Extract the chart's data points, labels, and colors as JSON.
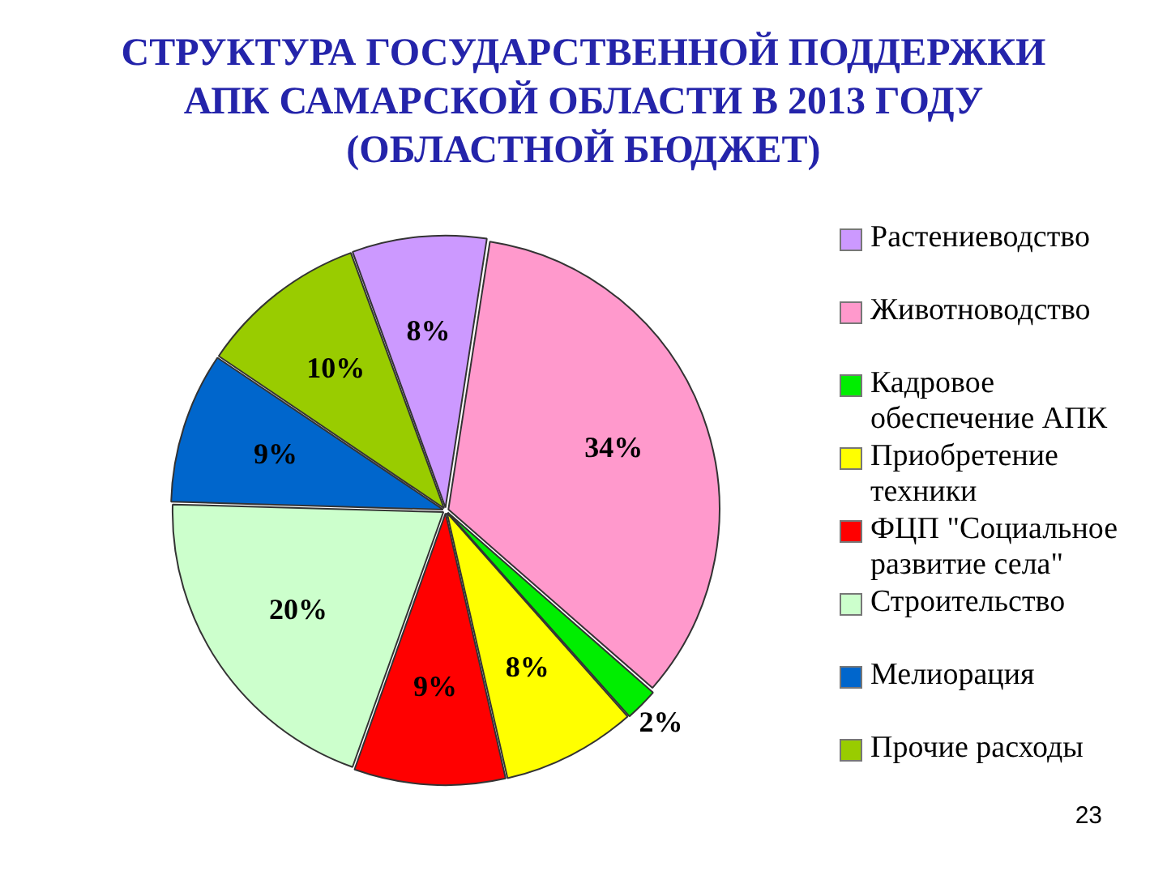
{
  "chart_data": {
    "type": "pie",
    "title": "СТРУКТУРА ГОСУДАРСТВЕННОЙ ПОДДЕРЖКИ АПК САМАРСКОЙ ОБЛАСТИ В 2013 ГОДУ (ОБЛАСТНОЙ БЮДЖЕТ)",
    "categories": [
      "Растениеводство",
      "Животноводство",
      "Кадровое обеспечение АПК",
      "Приобретение техники",
      "ФЦП \"Социальное развитие села\"",
      "Строительство",
      "Мелиорация",
      "Прочие расходы"
    ],
    "values": [
      8,
      34,
      2,
      8,
      9,
      20,
      9,
      10
    ],
    "value_labels": [
      "8%",
      "34%",
      "2%",
      "8%",
      "9%",
      "20%",
      "9%",
      "10%"
    ],
    "colors": [
      "#cc99ff",
      "#ff99cc",
      "#00ee00",
      "#ffff00",
      "#ff0000",
      "#ccffcc",
      "#0066cc",
      "#99cc00"
    ],
    "legend": "right",
    "annotations": [
      "23"
    ]
  }
}
